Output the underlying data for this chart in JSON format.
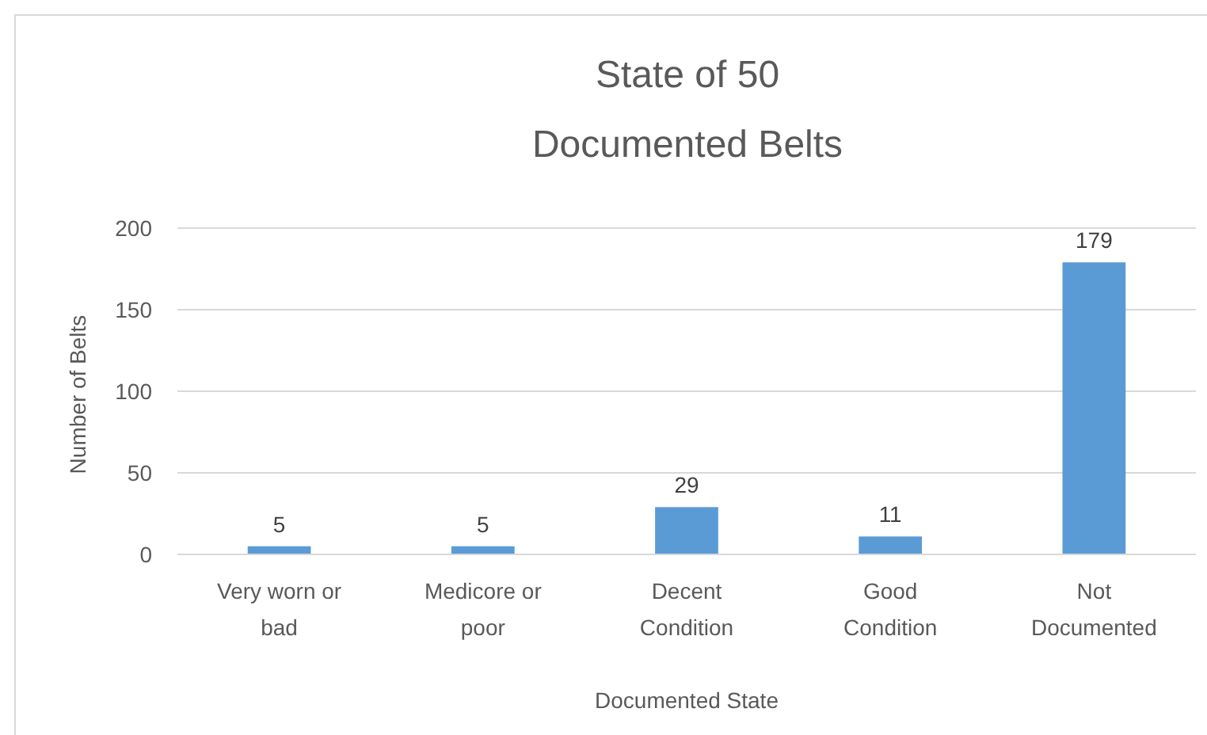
{
  "chart_data": {
    "type": "bar",
    "title": "State of 50 Documented Belts",
    "xlabel": "Documented State",
    "ylabel": "Number  of Belts",
    "categories": [
      "Very worn or bad",
      "Medicore or poor",
      "Decent Condition",
      "Good Condition",
      "Not Documented"
    ],
    "values": [
      5,
      5,
      29,
      11,
      179
    ],
    "color": "#5b9bd5",
    "ylim": [
      0,
      200
    ],
    "yticks": [
      0,
      50,
      100,
      150,
      200
    ],
    "grid": "y",
    "data_labels": true
  }
}
